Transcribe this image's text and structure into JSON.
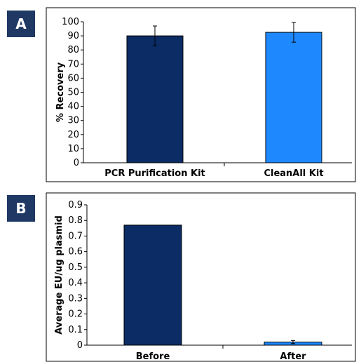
{
  "panels": [
    {
      "label": "A"
    },
    {
      "label": "B"
    }
  ],
  "colors": {
    "dark_bar": "#0b2c64",
    "light_bar": "#1e88ff",
    "badge": "#1f3864"
  },
  "chart_data": [
    {
      "type": "bar",
      "panel": "A",
      "categories": [
        "PCR Purification Kit",
        "CleanAll  Kit"
      ],
      "values": [
        90,
        92.5
      ],
      "errors": [
        7,
        7
      ],
      "colors": [
        "#0b2c64",
        "#1e88ff"
      ],
      "title": "",
      "xlabel": "",
      "ylabel": "% Recovery",
      "ylim": [
        0,
        100
      ],
      "yticks": [
        0,
        10,
        20,
        30,
        40,
        50,
        60,
        70,
        80,
        90,
        100
      ],
      "ytick_labels": [
        "0",
        "10",
        "20",
        "30",
        "40",
        "50",
        "60",
        "70",
        "80",
        "90",
        "100"
      ],
      "grid": false
    },
    {
      "type": "bar",
      "panel": "B",
      "categories": [
        "Before",
        "After"
      ],
      "values": [
        0.77,
        0.02
      ],
      "errors": [
        0,
        0.01
      ],
      "colors": [
        "#0b2c64",
        "#1e88ff"
      ],
      "title": "",
      "xlabel": "",
      "ylabel": "Average EU/ug plasmid",
      "ylim": [
        0,
        0.9
      ],
      "yticks": [
        0,
        0.1,
        0.2,
        0.3,
        0.4,
        0.5,
        0.6,
        0.7,
        0.8,
        0.9
      ],
      "ytick_labels": [
        "0",
        "0.1",
        "0.2",
        "0.3",
        "0.4",
        "0.5",
        "0.6",
        "0.7",
        "0.8",
        "0.9"
      ],
      "grid": false
    }
  ]
}
